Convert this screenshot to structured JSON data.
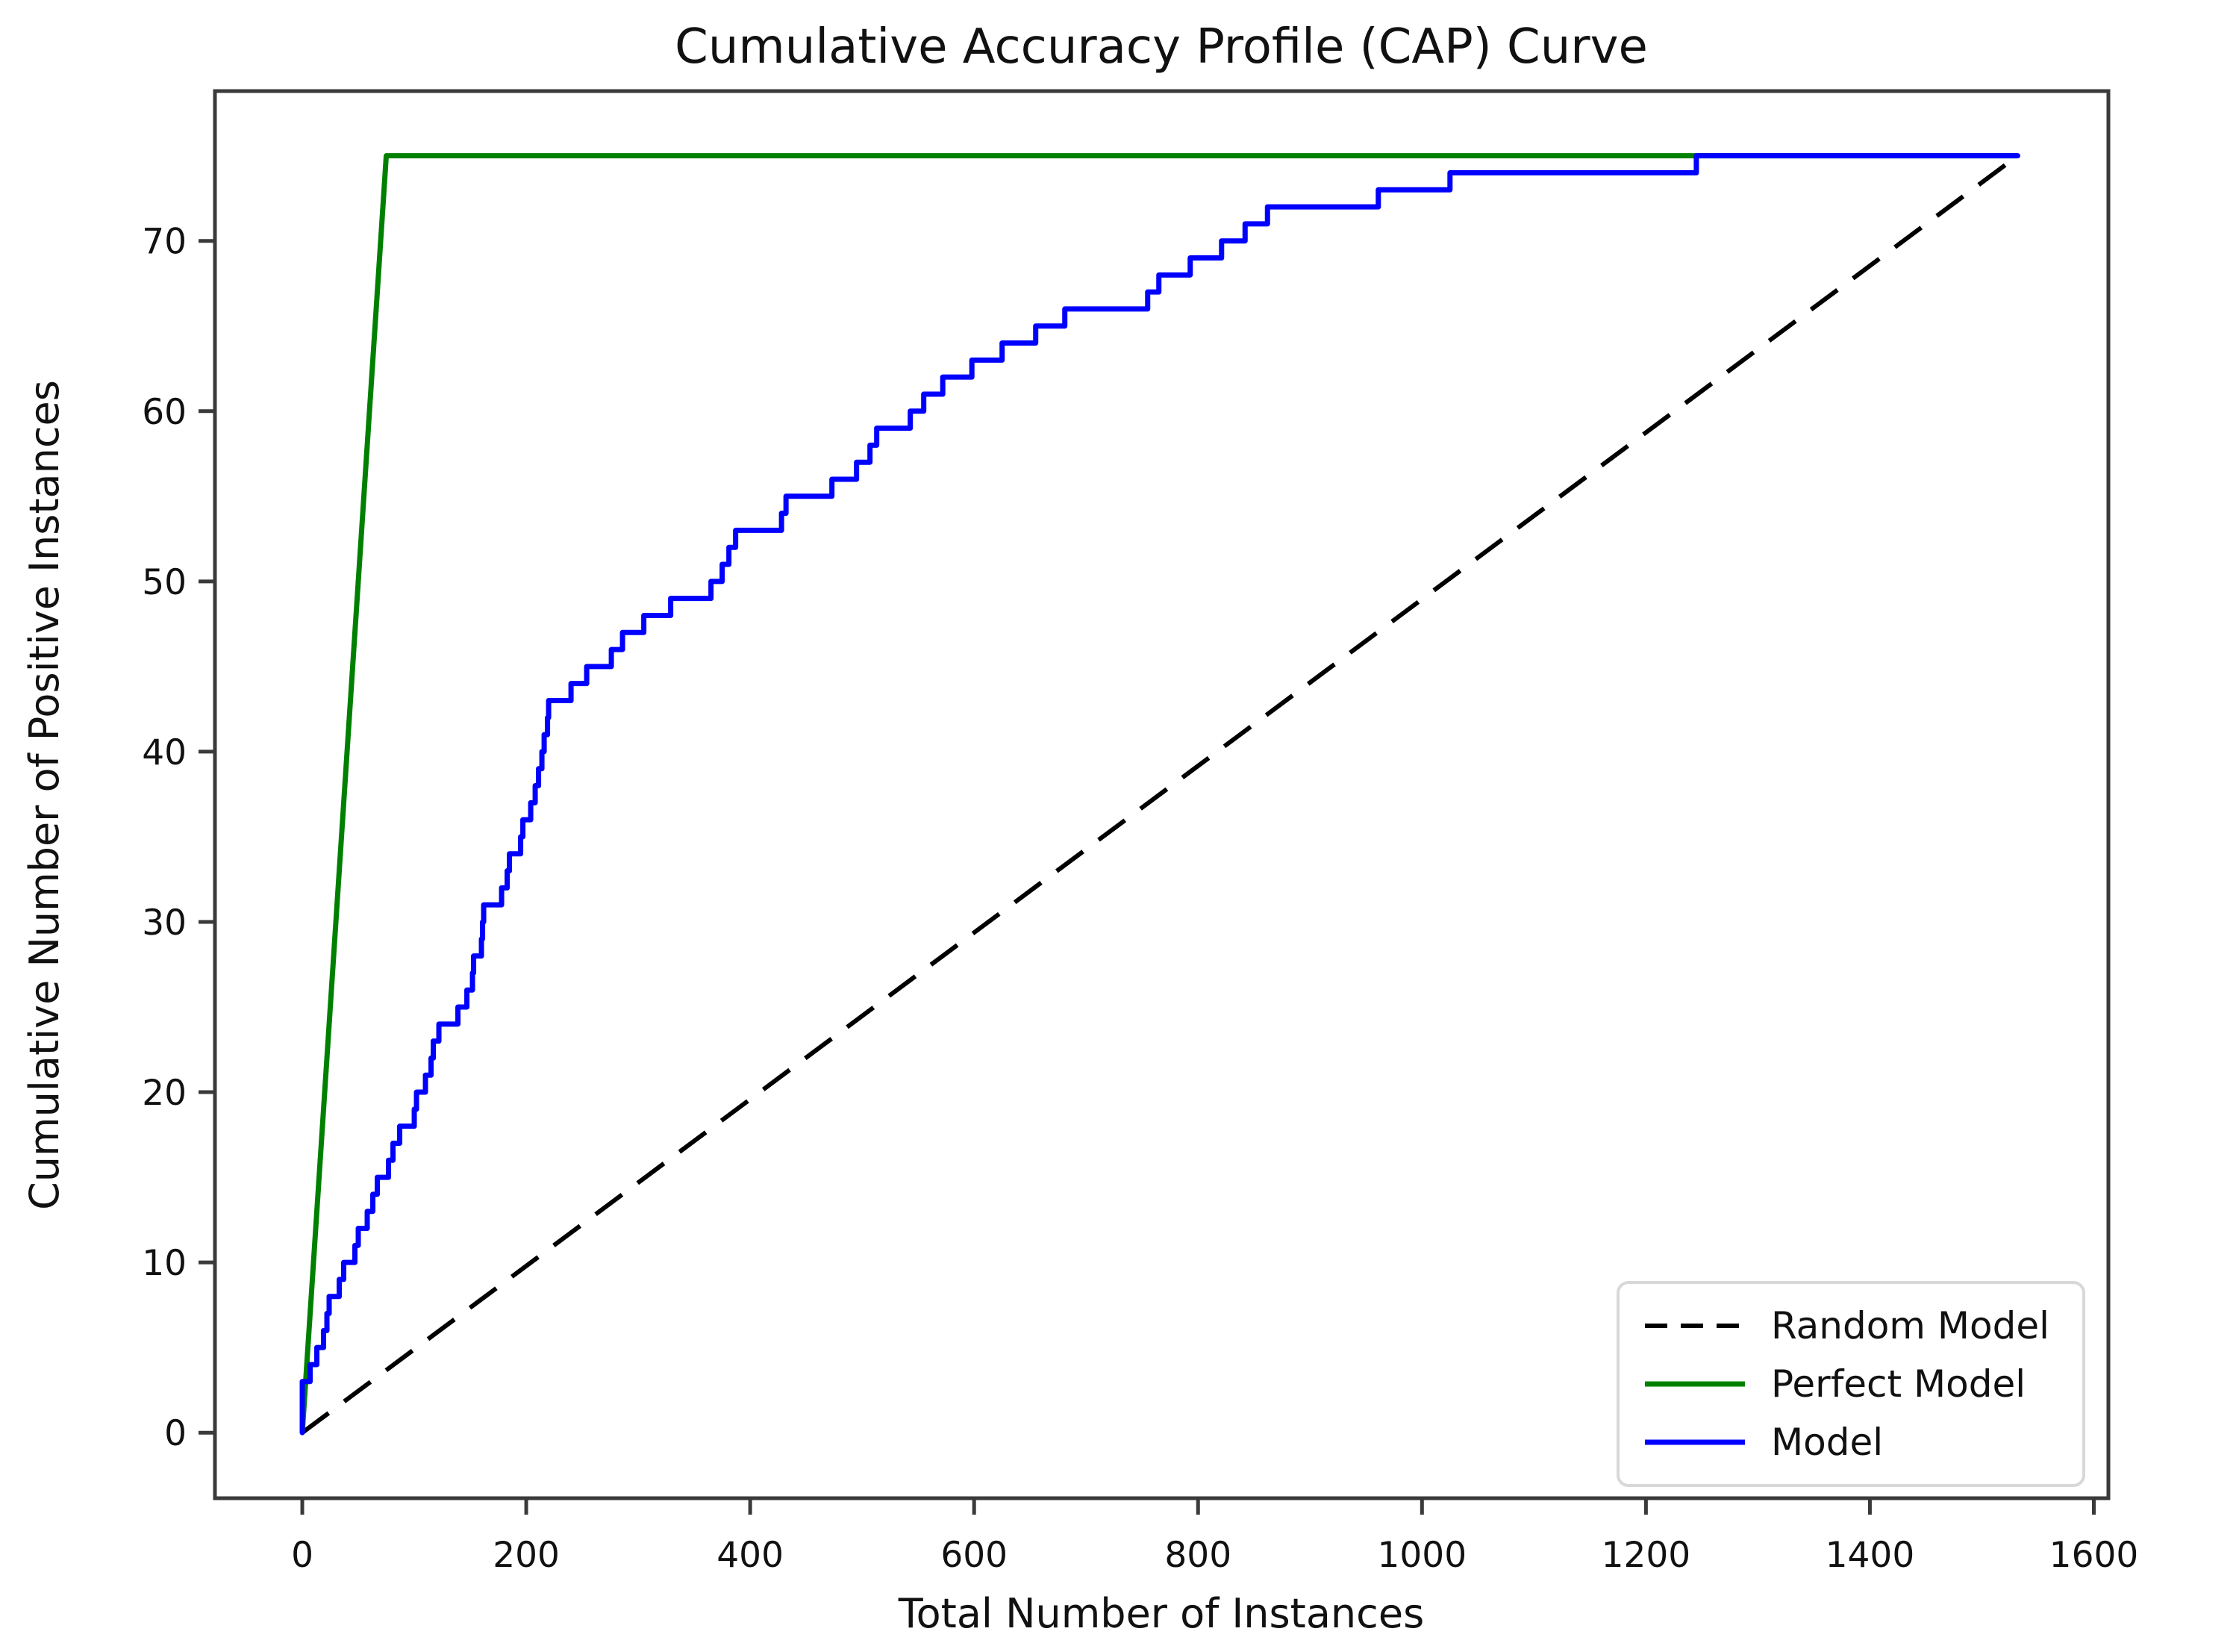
{
  "chart_data": {
    "type": "line",
    "title": "Cumulative Accuracy Profile (CAP) Curve",
    "xlabel": "Total Number of Instances",
    "ylabel": "Cumulative Number of Positive Instances",
    "xlim": [
      -78,
      1613
    ],
    "ylim": [
      -3.85,
      78.8
    ],
    "x_ticks": [
      0,
      200,
      400,
      600,
      800,
      1000,
      1200,
      1400,
      1600
    ],
    "y_ticks": [
      0,
      10,
      20,
      30,
      40,
      50,
      60,
      70
    ],
    "grid": false,
    "legend_position": "lower right",
    "total_instances": 1532,
    "total_positives": 75,
    "series": [
      {
        "name": "Random Model",
        "color": "#000000",
        "style": "dashed",
        "points": [
          [
            0,
            0
          ],
          [
            1532,
            75
          ]
        ]
      },
      {
        "name": "Perfect Model",
        "color": "#008000",
        "style": "solid",
        "points": [
          [
            0,
            0
          ],
          [
            75,
            75
          ],
          [
            1532,
            75
          ]
        ]
      },
      {
        "name": "Model",
        "color": "#0000ff",
        "style": "solid",
        "start_point": [
          0,
          0
        ],
        "staircase_steps": [
          [
            0,
            1
          ],
          [
            0,
            2
          ],
          [
            0,
            3
          ],
          [
            7,
            4
          ],
          [
            13,
            5
          ],
          [
            19,
            6
          ],
          [
            22,
            7
          ],
          [
            24,
            8
          ],
          [
            33,
            9
          ],
          [
            37,
            10
          ],
          [
            47,
            11
          ],
          [
            50,
            12
          ],
          [
            58,
            13
          ],
          [
            63,
            14
          ],
          [
            67,
            15
          ],
          [
            77,
            16
          ],
          [
            81,
            17
          ],
          [
            87,
            18
          ],
          [
            100,
            19
          ],
          [
            102,
            20
          ],
          [
            110,
            21
          ],
          [
            115,
            22
          ],
          [
            117,
            23
          ],
          [
            122,
            24
          ],
          [
            139,
            25
          ],
          [
            147,
            26
          ],
          [
            152,
            27
          ],
          [
            153,
            28
          ],
          [
            160,
            29
          ],
          [
            161,
            30
          ],
          [
            162,
            31
          ],
          [
            178,
            32
          ],
          [
            183,
            33
          ],
          [
            185,
            34
          ],
          [
            195,
            35
          ],
          [
            197,
            36
          ],
          [
            204,
            37
          ],
          [
            208,
            38
          ],
          [
            211,
            39
          ],
          [
            214,
            40
          ],
          [
            216,
            41
          ],
          [
            219,
            42
          ],
          [
            220,
            43
          ],
          [
            240,
            44
          ],
          [
            254,
            45
          ],
          [
            276,
            46
          ],
          [
            286,
            47
          ],
          [
            305,
            48
          ],
          [
            329,
            49
          ],
          [
            365,
            50
          ],
          [
            375,
            51
          ],
          [
            381,
            52
          ],
          [
            387,
            53
          ],
          [
            428,
            54
          ],
          [
            432,
            55
          ],
          [
            473,
            56
          ],
          [
            495,
            57
          ],
          [
            507,
            58
          ],
          [
            513,
            59
          ],
          [
            543,
            60
          ],
          [
            555,
            61
          ],
          [
            572,
            62
          ],
          [
            598,
            63
          ],
          [
            625,
            64
          ],
          [
            655,
            65
          ],
          [
            681,
            66
          ],
          [
            755,
            67
          ],
          [
            765,
            68
          ],
          [
            793,
            69
          ],
          [
            821,
            70
          ],
          [
            842,
            71
          ],
          [
            862,
            72
          ],
          [
            961,
            73
          ],
          [
            1025,
            74
          ],
          [
            1245,
            75
          ]
        ],
        "end_x": 1532
      }
    ],
    "colors": {
      "random_model": "#000000",
      "perfect_model": "#008000",
      "model": "#0000ff",
      "spine": "#3a3a3a",
      "text": "#111111",
      "legend_border": "#d8d8d8",
      "background": "#ffffff"
    }
  }
}
